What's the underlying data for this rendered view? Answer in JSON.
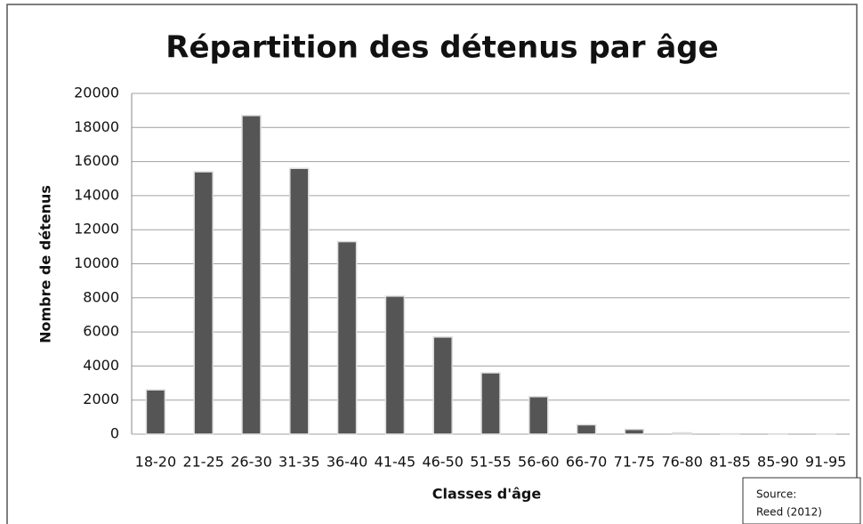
{
  "chart_data": {
    "type": "bar",
    "title": "Répartition des détenus par âge",
    "xlabel": "Classes d'âge",
    "ylabel": "Nombre de détenus",
    "categories": [
      "18-20",
      "21-25",
      "26-30",
      "31-35",
      "36-40",
      "41-45",
      "46-50",
      "51-55",
      "56-60",
      "66-70",
      "71-75",
      "76-80",
      "81-85",
      "85-90",
      "91-95"
    ],
    "values": [
      2600,
      15400,
      18700,
      15600,
      11300,
      8100,
      5700,
      3600,
      2200,
      550,
      280,
      80,
      20,
      10,
      5
    ],
    "color": "#555555",
    "ylim": [
      0,
      20000
    ],
    "yticks": [
      0,
      2000,
      4000,
      6000,
      8000,
      10000,
      12000,
      14000,
      16000,
      18000,
      20000
    ],
    "grid": true,
    "annotations": [
      "Source:",
      "Reed (2012)"
    ]
  }
}
